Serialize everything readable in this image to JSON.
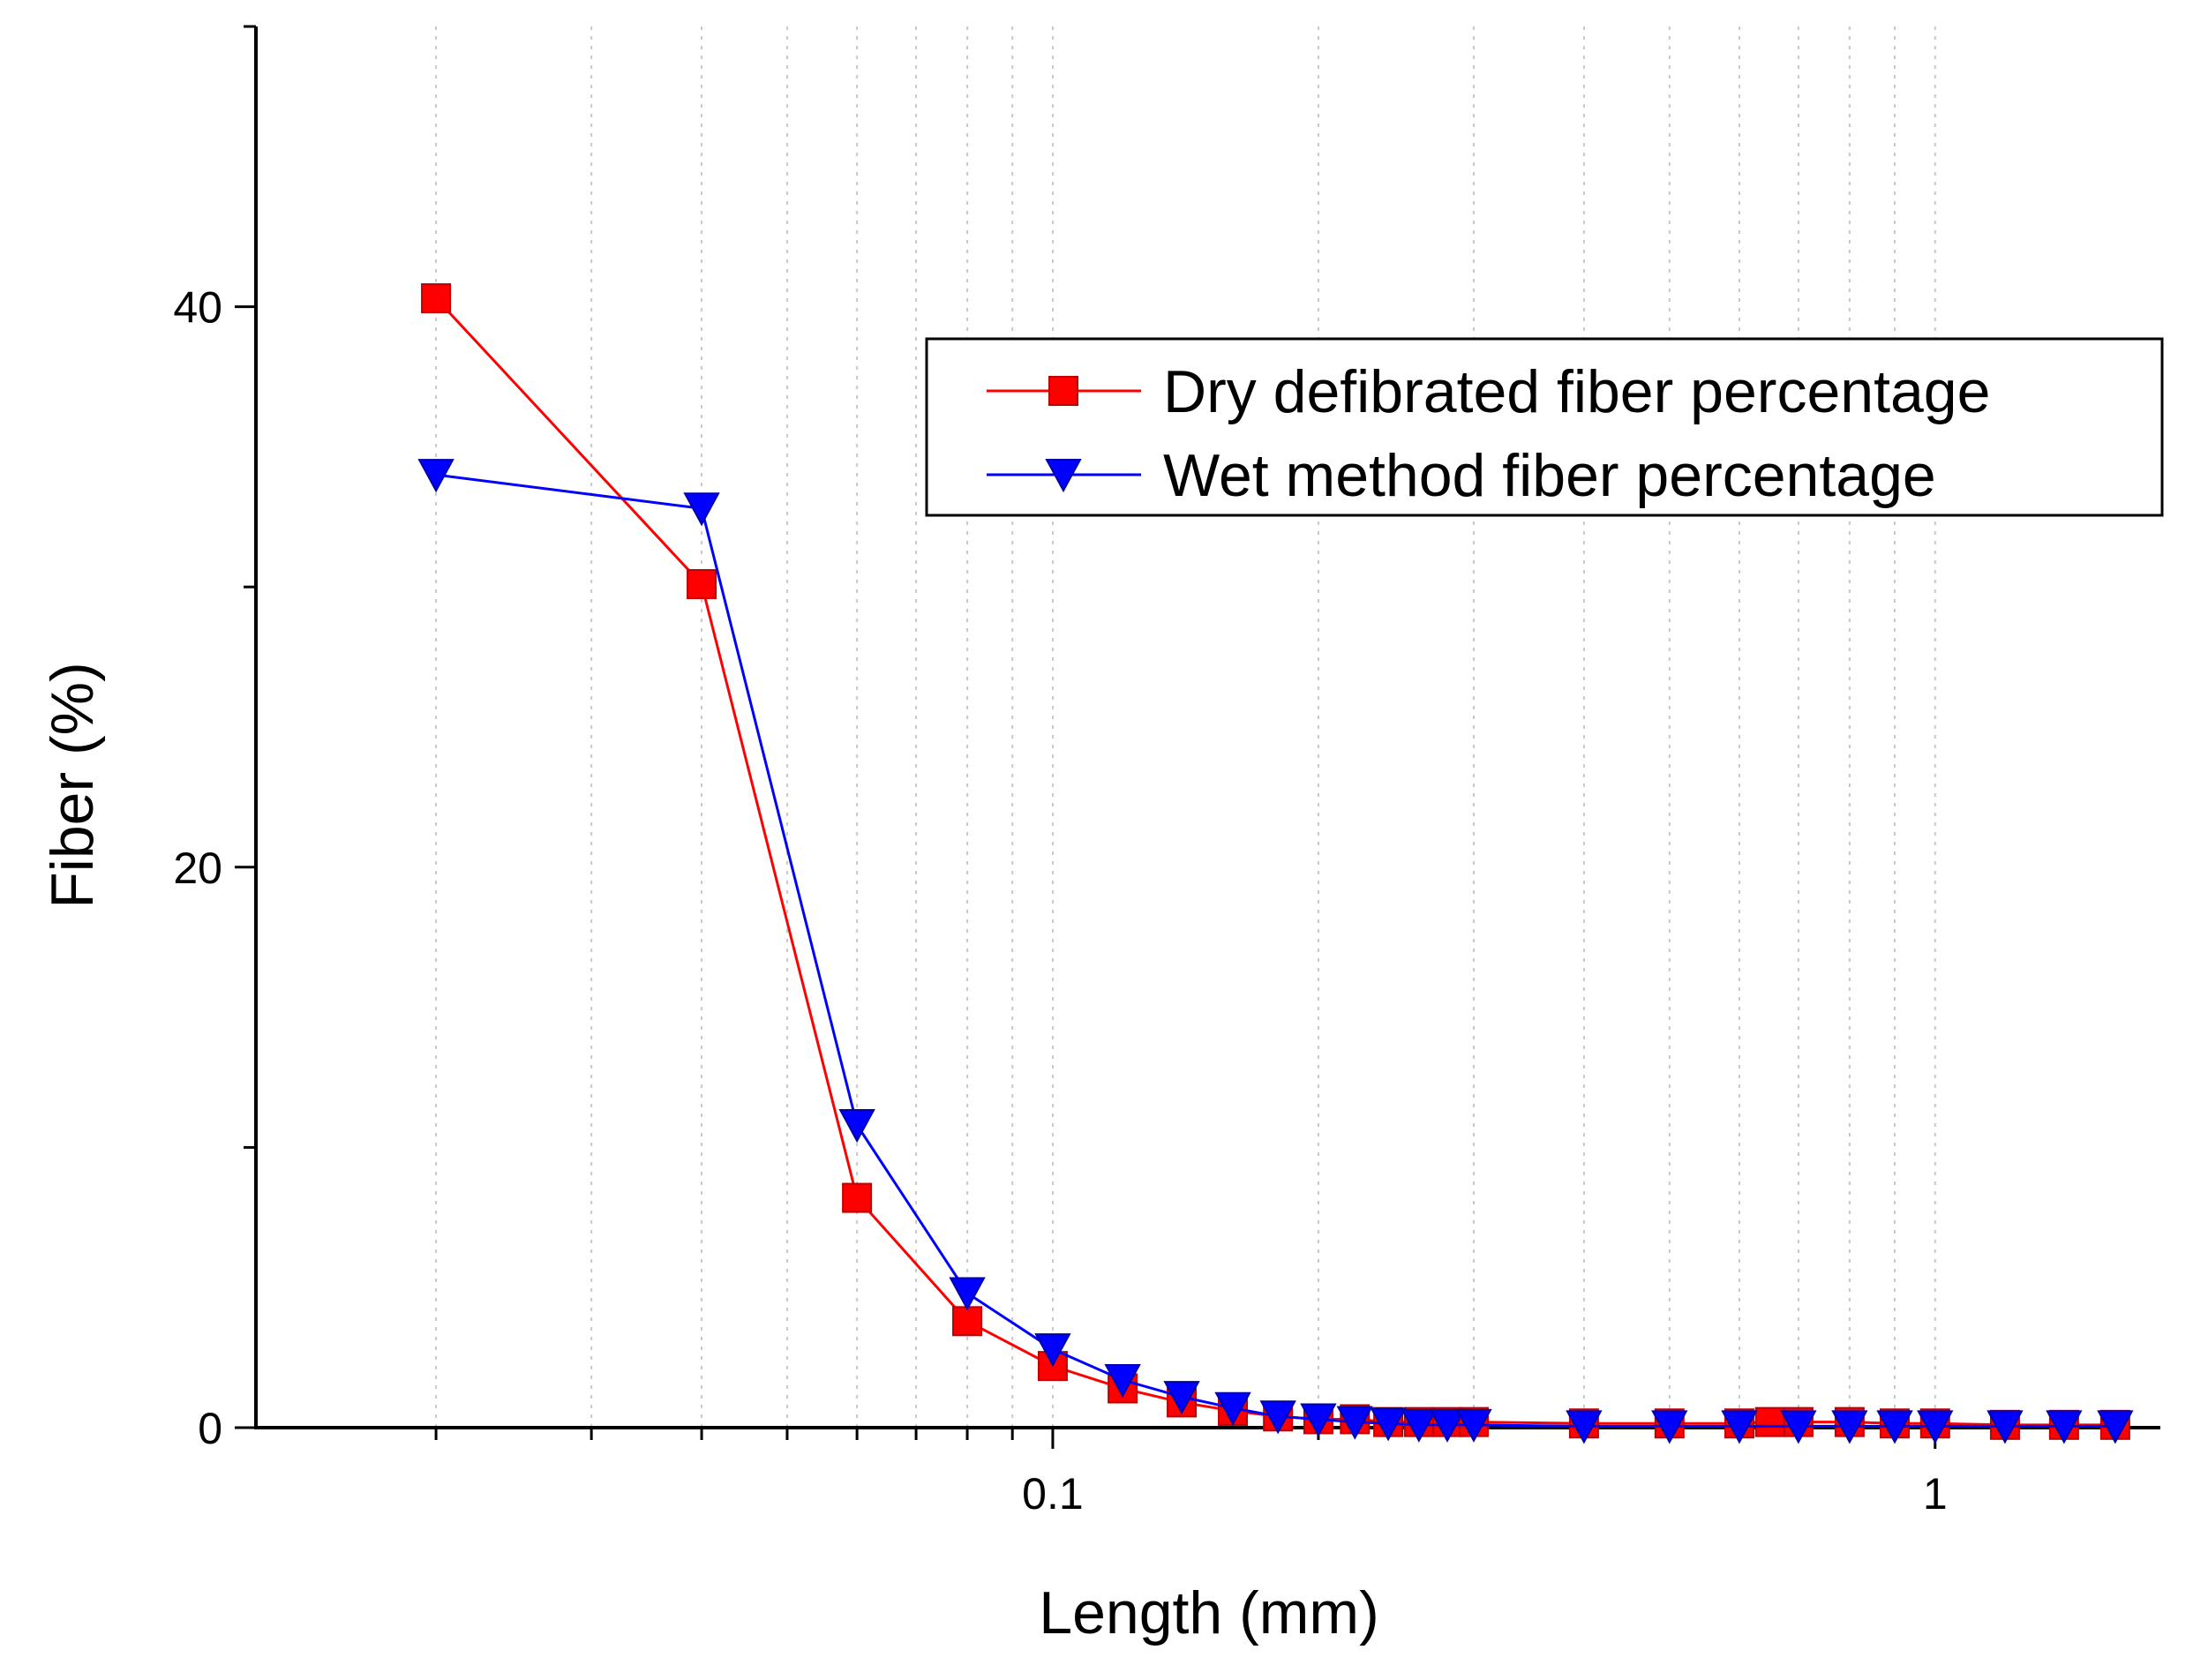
{
  "chart_data": {
    "type": "line",
    "title": "",
    "xlabel": "Length (mm)",
    "ylabel": "Fiber (%)",
    "xscale": "log",
    "xlim": [
      0.0125,
      1.8
    ],
    "ylim": [
      0,
      50
    ],
    "x_ticks": [
      {
        "value": 0.1,
        "label": "0.1"
      },
      {
        "value": 1,
        "label": "1"
      }
    ],
    "y_ticks": [
      {
        "value": 0,
        "label": "0"
      },
      {
        "value": 20,
        "label": "20"
      },
      {
        "value": 40,
        "label": "40"
      }
    ],
    "y_minor_ticks": [
      10,
      30,
      50
    ],
    "grid": "vertical dotted at log minor ticks",
    "legend_position": "top-right",
    "series": [
      {
        "name": "Dry defibrated fiber percentage",
        "color": "#ff0000",
        "marker": "square",
        "x": [
          0.02,
          0.04,
          0.06,
          0.08,
          0.1,
          0.12,
          0.14,
          0.16,
          0.18,
          0.2,
          0.22,
          0.24,
          0.26,
          0.28,
          0.3,
          0.4,
          0.5,
          0.6,
          0.65,
          0.7,
          0.8,
          0.9,
          1.0,
          1.2,
          1.4,
          1.6
        ],
        "values": [
          40.3,
          30.1,
          8.2,
          3.8,
          2.2,
          1.4,
          0.9,
          0.6,
          0.4,
          0.3,
          0.3,
          0.2,
          0.2,
          0.2,
          0.2,
          0.15,
          0.15,
          0.15,
          0.2,
          0.2,
          0.2,
          0.15,
          0.15,
          0.1,
          0.1,
          0.1
        ]
      },
      {
        "name": "Wet method fiber percentage",
        "color": "#0000ff",
        "marker": "triangle-down",
        "x": [
          0.02,
          0.04,
          0.06,
          0.08,
          0.1,
          0.12,
          0.14,
          0.16,
          0.18,
          0.2,
          0.22,
          0.24,
          0.26,
          0.28,
          0.3,
          0.4,
          0.5,
          0.6,
          0.7,
          0.8,
          0.9,
          1.0,
          1.2,
          1.4,
          1.6
        ],
        "values": [
          34.0,
          32.8,
          10.8,
          4.8,
          2.8,
          1.7,
          1.1,
          0.7,
          0.4,
          0.3,
          0.2,
          0.15,
          0.1,
          0.1,
          0.1,
          0.05,
          0.05,
          0.05,
          0.05,
          0.05,
          0.05,
          0.05,
          0.05,
          0.05,
          0.05
        ]
      }
    ]
  }
}
